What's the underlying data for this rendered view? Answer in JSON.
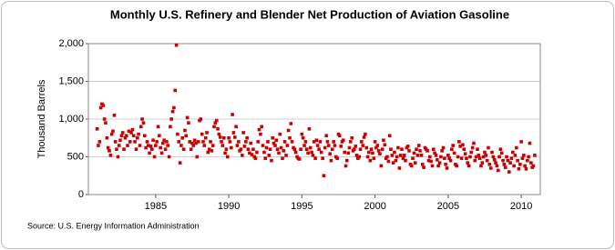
{
  "chart_data": {
    "type": "scatter",
    "title": "Monthly U.S. Refinery and Blender Net Production of Aviation Gasoline",
    "y_label": "Thousand Barrels",
    "source": "Source: U.S. Energy Information Administration",
    "color": "#cc0000",
    "grid": true,
    "xlim": [
      1980.4,
      2011.3
    ],
    "ylim": [
      0,
      2000
    ],
    "xticks": [
      1985,
      1990,
      1995,
      2000,
      2005,
      2010
    ],
    "yticks": [
      0,
      500,
      {
        "value": 1000,
        "label": "1,000"
      },
      {
        "value": 1500,
        "label": "1,500"
      },
      {
        "value": 2000,
        "label": "2,000"
      }
    ],
    "x": [
      1981,
      1981.08,
      1981.17,
      1981.25,
      1981.33,
      1981.42,
      1981.5,
      1981.58,
      1981.67,
      1981.75,
      1981.83,
      1981.92,
      1982,
      1982.08,
      1982.17,
      1982.25,
      1982.33,
      1982.42,
      1982.5,
      1982.58,
      1982.67,
      1982.75,
      1982.83,
      1982.92,
      1983,
      1983.08,
      1983.17,
      1983.25,
      1983.33,
      1983.42,
      1983.5,
      1983.58,
      1983.67,
      1983.75,
      1983.83,
      1983.92,
      1984,
      1984.08,
      1984.17,
      1984.25,
      1984.33,
      1984.42,
      1984.5,
      1984.58,
      1984.67,
      1984.75,
      1984.83,
      1984.92,
      1985,
      1985.08,
      1985.17,
      1985.25,
      1985.33,
      1985.42,
      1985.5,
      1985.58,
      1985.67,
      1985.75,
      1985.83,
      1985.92,
      1986,
      1986.08,
      1986.17,
      1986.25,
      1986.33,
      1986.42,
      1986.5,
      1986.58,
      1986.67,
      1986.75,
      1986.83,
      1986.92,
      1987,
      1987.08,
      1987.17,
      1987.25,
      1987.33,
      1987.42,
      1987.5,
      1987.58,
      1987.67,
      1987.75,
      1987.83,
      1987.92,
      1988,
      1988.08,
      1988.17,
      1988.25,
      1988.33,
      1988.42,
      1988.5,
      1988.58,
      1988.67,
      1988.75,
      1988.83,
      1988.92,
      1989,
      1989.08,
      1989.17,
      1989.25,
      1989.33,
      1989.42,
      1989.5,
      1989.58,
      1989.67,
      1989.75,
      1989.83,
      1989.92,
      1990,
      1990.08,
      1990.17,
      1990.25,
      1990.33,
      1990.42,
      1990.5,
      1990.58,
      1990.67,
      1990.75,
      1990.83,
      1990.92,
      1991,
      1991.08,
      1991.17,
      1991.25,
      1991.33,
      1991.42,
      1991.5,
      1991.58,
      1991.67,
      1991.75,
      1991.83,
      1991.92,
      1992,
      1992.08,
      1992.17,
      1992.25,
      1992.33,
      1992.42,
      1992.5,
      1992.58,
      1992.67,
      1992.75,
      1992.83,
      1992.92,
      1993,
      1993.08,
      1993.17,
      1993.25,
      1993.33,
      1993.42,
      1993.5,
      1993.58,
      1993.67,
      1993.75,
      1993.83,
      1993.92,
      1994,
      1994.08,
      1994.17,
      1994.25,
      1994.33,
      1994.42,
      1994.5,
      1994.58,
      1994.67,
      1994.75,
      1994.83,
      1994.92,
      1995,
      1995.08,
      1995.17,
      1995.25,
      1995.33,
      1995.42,
      1995.5,
      1995.58,
      1995.67,
      1995.75,
      1995.83,
      1995.92,
      1996,
      1996.08,
      1996.17,
      1996.25,
      1996.33,
      1996.42,
      1996.5,
      1996.58,
      1996.67,
      1996.75,
      1996.83,
      1996.92,
      1997,
      1997.08,
      1997.17,
      1997.25,
      1997.33,
      1997.42,
      1997.5,
      1997.58,
      1997.67,
      1997.75,
      1997.83,
      1997.92,
      1998,
      1998.08,
      1998.17,
      1998.25,
      1998.33,
      1998.42,
      1998.5,
      1998.58,
      1998.67,
      1998.75,
      1998.83,
      1998.92,
      1999,
      1999.08,
      1999.17,
      1999.25,
      1999.33,
      1999.42,
      1999.5,
      1999.58,
      1999.67,
      1999.75,
      1999.83,
      1999.92,
      2000,
      2000.08,
      2000.17,
      2000.25,
      2000.33,
      2000.42,
      2000.5,
      2000.58,
      2000.67,
      2000.75,
      2000.83,
      2000.92,
      2001,
      2001.08,
      2001.17,
      2001.25,
      2001.33,
      2001.42,
      2001.5,
      2001.58,
      2001.67,
      2001.75,
      2001.83,
      2001.92,
      2002,
      2002.08,
      2002.17,
      2002.25,
      2002.33,
      2002.42,
      2002.5,
      2002.58,
      2002.67,
      2002.75,
      2002.83,
      2002.92,
      2003,
      2003.08,
      2003.17,
      2003.25,
      2003.33,
      2003.42,
      2003.5,
      2003.58,
      2003.67,
      2003.75,
      2003.83,
      2003.92,
      2004,
      2004.08,
      2004.17,
      2004.25,
      2004.33,
      2004.42,
      2004.5,
      2004.58,
      2004.67,
      2004.75,
      2004.83,
      2004.92,
      2005,
      2005.08,
      2005.17,
      2005.25,
      2005.33,
      2005.42,
      2005.5,
      2005.58,
      2005.67,
      2005.75,
      2005.83,
      2005.92,
      2006,
      2006.08,
      2006.17,
      2006.25,
      2006.33,
      2006.42,
      2006.5,
      2006.58,
      2006.67,
      2006.75,
      2006.83,
      2006.92,
      2007,
      2007.08,
      2007.17,
      2007.25,
      2007.33,
      2007.42,
      2007.5,
      2007.58,
      2007.67,
      2007.75,
      2007.83,
      2007.92,
      2008,
      2008.08,
      2008.17,
      2008.25,
      2008.33,
      2008.42,
      2008.5,
      2008.58,
      2008.67,
      2008.75,
      2008.83,
      2008.92,
      2009,
      2009.08,
      2009.17,
      2009.25,
      2009.33,
      2009.42,
      2009.5,
      2009.58,
      2009.67,
      2009.75,
      2009.83,
      2009.92,
      2010,
      2010.08,
      2010.17,
      2010.25,
      2010.33,
      2010.42,
      2010.5,
      2010.58,
      2010.67,
      2010.75,
      2010.83,
      2010.92
    ],
    "values": [
      870,
      650,
      700,
      1150,
      1200,
      1180,
      1000,
      950,
      750,
      620,
      580,
      520,
      800,
      840,
      1050,
      700,
      600,
      500,
      650,
      720,
      780,
      820,
      600,
      750,
      780,
      650,
      840,
      700,
      820,
      860,
      780,
      700,
      600,
      750,
      800,
      650,
      900,
      1000,
      950,
      780,
      620,
      700,
      650,
      550,
      640,
      600,
      720,
      500,
      650,
      700,
      900,
      780,
      620,
      550,
      680,
      720,
      600,
      700,
      650,
      500,
      900,
      1000,
      1100,
      1150,
      1380,
      1980,
      800,
      700,
      420,
      650,
      750,
      600,
      850,
      780,
      1020,
      950,
      700,
      600,
      680,
      650,
      720,
      680,
      500,
      700,
      980,
      1000,
      800,
      700,
      650,
      750,
      820,
      560,
      600,
      700,
      580,
      650,
      900,
      950,
      980,
      870,
      800,
      760,
      700,
      650,
      750,
      550,
      600,
      500,
      750,
      700,
      620,
      1060,
      820,
      760,
      900,
      650,
      700,
      580,
      600,
      520,
      820,
      640,
      700,
      750,
      600,
      550,
      680,
      530,
      600,
      500,
      480,
      560,
      700,
      860,
      800,
      900,
      650,
      560,
      480,
      620,
      700,
      520,
      600,
      450,
      750,
      680,
      650,
      720,
      600,
      550,
      800,
      620,
      480,
      580,
      700,
      520,
      650,
      850,
      750,
      940,
      700,
      620,
      600,
      560,
      500,
      480,
      470,
      600,
      800,
      750,
      650,
      700,
      600,
      550,
      870,
      620,
      560,
      520,
      700,
      480,
      720,
      650,
      600,
      700,
      560,
      480,
      250,
      620,
      780,
      700,
      650,
      540,
      450,
      600,
      700,
      650,
      500,
      480,
      800,
      780,
      640,
      700,
      720,
      560,
      380,
      450,
      550,
      620,
      700,
      750,
      580,
      600,
      640,
      520,
      480,
      500,
      600,
      700,
      650,
      760,
      800,
      620,
      500,
      560,
      450,
      600,
      550,
      480,
      700,
      620,
      650,
      580,
      540,
      380,
      600,
      720,
      660,
      480,
      500,
      440,
      780,
      600,
      520,
      420,
      560,
      450,
      500,
      620,
      350,
      520,
      600,
      480,
      520,
      450,
      620,
      640,
      580,
      400,
      380,
      480,
      550,
      420,
      600,
      520,
      650,
      580,
      520,
      400,
      360,
      620,
      600,
      580,
      450,
      500,
      440,
      380,
      600,
      550,
      520,
      460,
      380,
      420,
      500,
      580,
      620,
      480,
      400,
      350,
      520,
      480,
      450,
      600,
      650,
      550,
      400,
      380,
      500,
      700,
      640,
      480,
      660,
      600,
      540,
      480,
      420,
      380,
      500,
      560,
      620,
      680,
      450,
      500,
      600,
      520,
      480,
      380,
      420,
      500,
      560,
      520,
      450,
      620,
      400,
      350,
      560,
      500,
      460,
      420,
      380,
      320,
      500,
      600,
      550,
      450,
      400,
      360,
      500,
      450,
      300,
      420,
      480,
      560,
      380,
      520,
      620,
      450,
      340,
      400,
      700,
      480,
      520,
      380,
      340,
      450,
      500,
      680,
      420,
      360,
      380,
      520
    ]
  }
}
